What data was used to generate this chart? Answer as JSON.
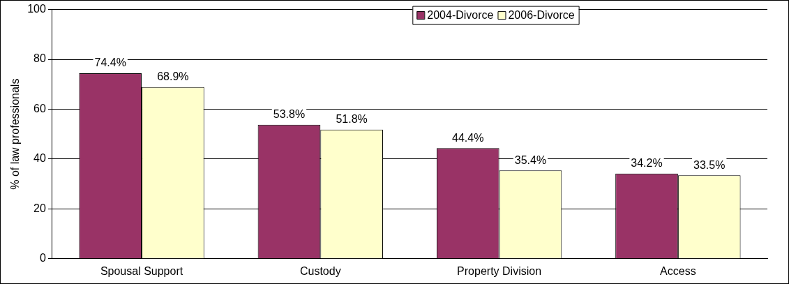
{
  "chart_data": {
    "type": "bar",
    "ylabel": "% of law professionals",
    "categories": [
      "Spousal Support",
      "Custody",
      "Property Division",
      "Access"
    ],
    "series": [
      {
        "name": "2004-Divorce",
        "color": "#993366",
        "values": [
          74.4,
          53.8,
          44.4,
          34.2
        ],
        "value_labels": [
          "74.4%",
          "53.8%",
          "44.4%",
          "34.2%"
        ]
      },
      {
        "name": "2006-Divorce",
        "color": "#ffffcc",
        "values": [
          68.9,
          51.8,
          35.4,
          33.5
        ],
        "value_labels": [
          "68.9%",
          "51.8%",
          "35.4%",
          "33.5%"
        ]
      }
    ],
    "ylim": [
      0,
      100
    ],
    "yticks": [
      0,
      20,
      40,
      60,
      80,
      100
    ],
    "grid": "y",
    "legend": "top right"
  }
}
